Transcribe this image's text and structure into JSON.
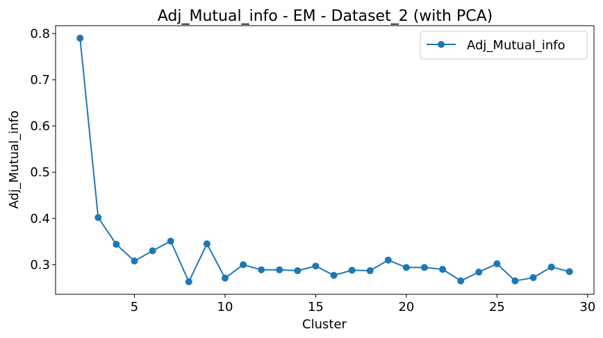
{
  "chart_data": {
    "type": "line",
    "title": "Adj_Mutual_info - EM - Dataset_2 (with PCA)",
    "xlabel": "Cluster",
    "ylabel": "Adj_Mutual_info",
    "xlim": [
      0.65,
      30.35
    ],
    "ylim": [
      0.236,
      0.817
    ],
    "xticks": [
      5,
      10,
      15,
      20,
      25,
      30
    ],
    "yticks": [
      0.3,
      0.4,
      0.5,
      0.6,
      0.7,
      0.8
    ],
    "legend_position": "top-right",
    "grid": false,
    "series": [
      {
        "name": "Adj_Mutual_info",
        "color": "#1f77b4",
        "marker": "circle",
        "x": [
          2,
          3,
          4,
          5,
          6,
          7,
          8,
          9,
          10,
          11,
          12,
          13,
          14,
          15,
          16,
          17,
          18,
          19,
          20,
          21,
          22,
          23,
          24,
          25,
          26,
          27,
          28,
          29
        ],
        "values": [
          0.79,
          0.402,
          0.344,
          0.308,
          0.33,
          0.351,
          0.263,
          0.345,
          0.271,
          0.3,
          0.289,
          0.289,
          0.287,
          0.297,
          0.277,
          0.288,
          0.287,
          0.31,
          0.294,
          0.294,
          0.29,
          0.265,
          0.284,
          0.302,
          0.265,
          0.272,
          0.295,
          0.285
        ]
      }
    ]
  }
}
